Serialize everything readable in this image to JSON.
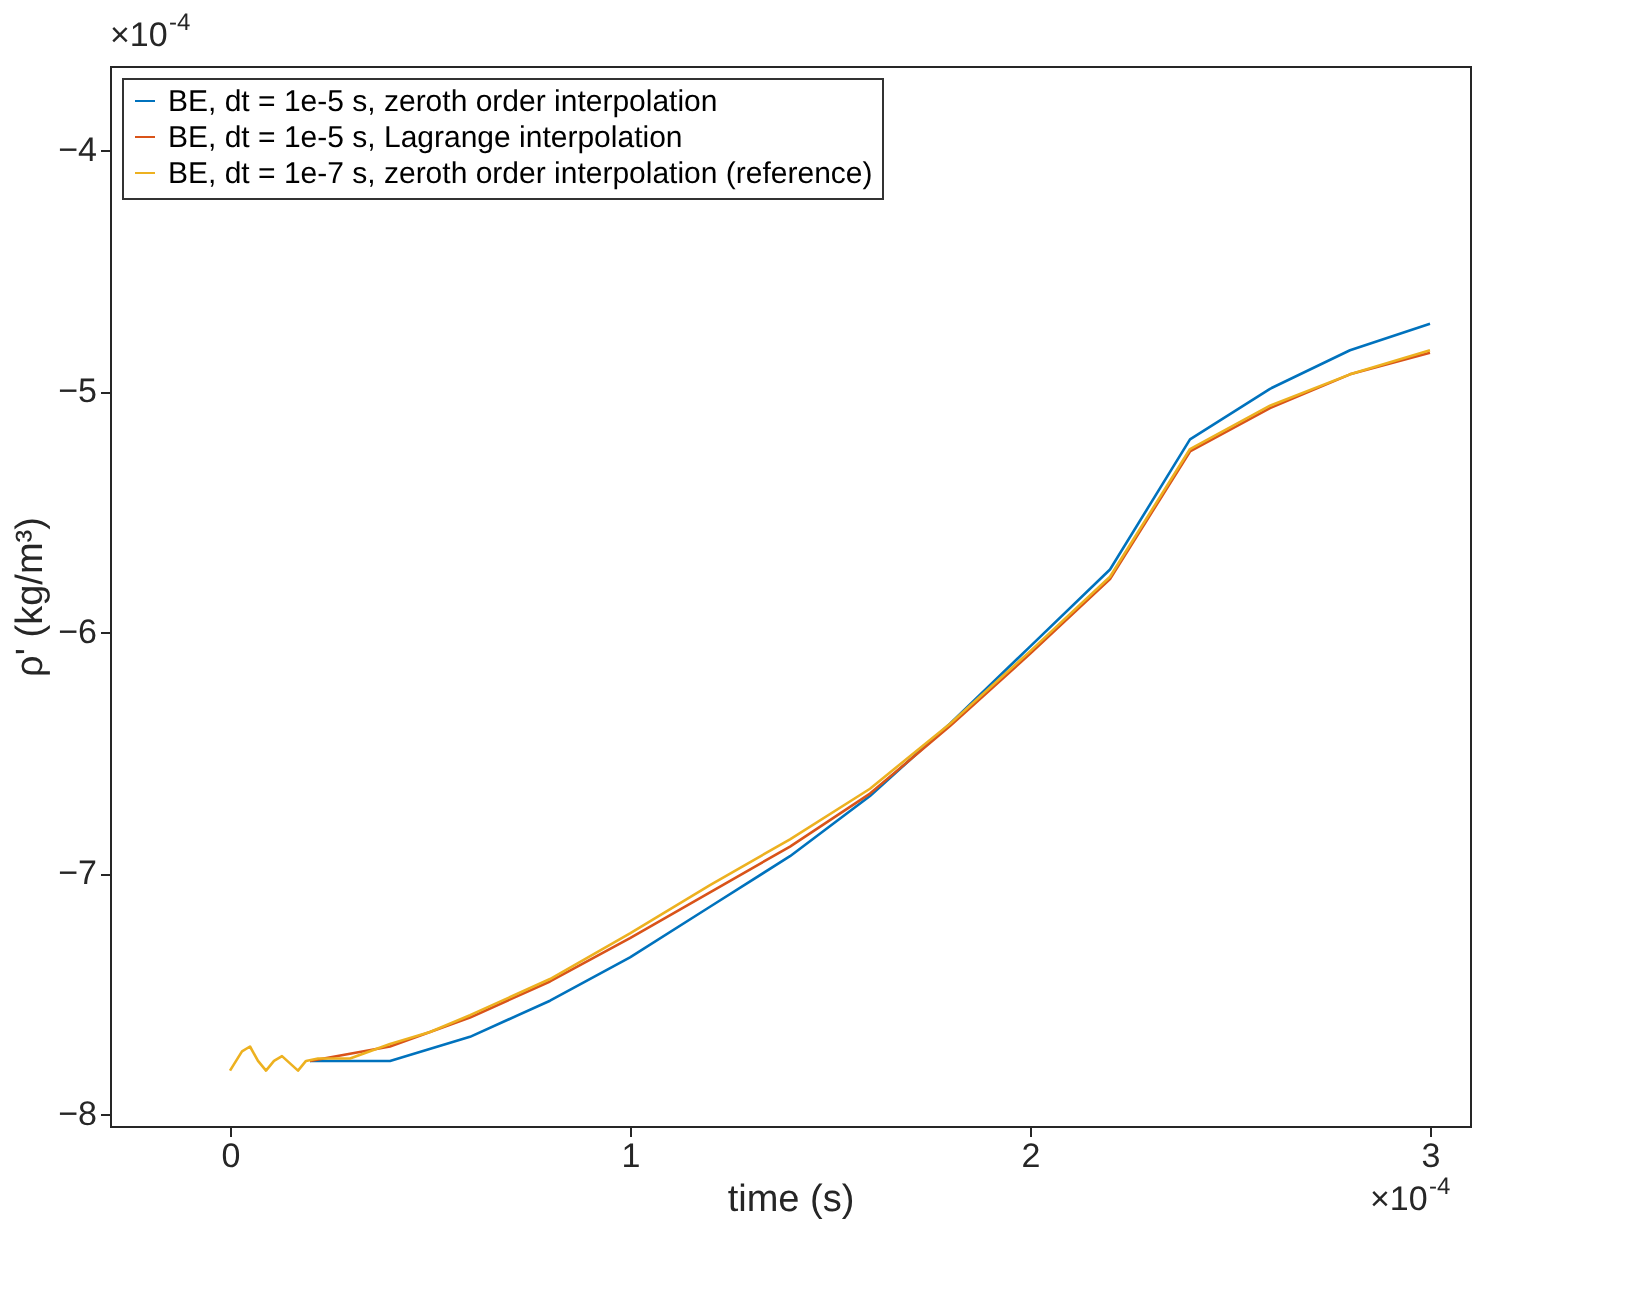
{
  "chart_data": {
    "type": "line",
    "xlabel": "time (s)",
    "ylabel": "ρ' (kg/m³)",
    "xlim": [
      -0.3,
      3.1
    ],
    "xticks": [
      0,
      1,
      2,
      3
    ],
    "ylim": [
      -8.05,
      -3.65
    ],
    "yticks": [
      -8,
      -7,
      -6,
      -5,
      -4
    ],
    "annotations": [
      "×10$^{-4}$",
      "×10$^{-4}$"
    ],
    "legend": "top left",
    "grid": false,
    "line_style": "solid",
    "series": [
      {
        "name": "BE, dt = 1e-5 s, zeroth order interpolation",
        "color": "#0072bd",
        "x": [
          0.2,
          0.4,
          0.6,
          0.8,
          1.0,
          1.2,
          1.4,
          1.6,
          1.8,
          2.0,
          2.2,
          2.4,
          2.6,
          2.8,
          3.0
        ],
        "values": [
          -7.78,
          -7.78,
          -7.68,
          -7.53,
          -7.35,
          -7.14,
          -6.93,
          -6.68,
          -6.38,
          -6.06,
          -5.74,
          -5.2,
          -4.99,
          -4.83,
          -4.72
        ]
      },
      {
        "name": "BE, dt = 1e-5 s, Lagrange interpolation",
        "color": "#d95319",
        "x": [
          0.2,
          0.4,
          0.6,
          0.8,
          1.0,
          1.2,
          1.4,
          1.6,
          1.8,
          2.0,
          2.2,
          2.4,
          2.6,
          2.8,
          3.0
        ],
        "values": [
          -7.78,
          -7.72,
          -7.6,
          -7.45,
          -7.27,
          -7.08,
          -6.89,
          -6.67,
          -6.39,
          -6.09,
          -5.78,
          -5.25,
          -5.07,
          -4.93,
          -4.84
        ]
      },
      {
        "name": "BE, dt = 1e-7 s, zeroth order interpolation (reference)",
        "color": "#edb120",
        "x": [
          0,
          0.03,
          0.05,
          0.07,
          0.09,
          0.11,
          0.13,
          0.15,
          0.17,
          0.19,
          0.22,
          0.3,
          0.35,
          0.4,
          0.5,
          0.6,
          0.8,
          1.0,
          1.2,
          1.4,
          1.6,
          1.8,
          2.0,
          2.2,
          2.4,
          2.6,
          2.8,
          3.0
        ],
        "values": [
          -7.82,
          -7.74,
          -7.72,
          -7.78,
          -7.82,
          -7.78,
          -7.76,
          -7.79,
          -7.82,
          -7.78,
          -7.77,
          -7.77,
          -7.74,
          -7.71,
          -7.66,
          -7.59,
          -7.44,
          -7.25,
          -7.05,
          -6.86,
          -6.65,
          -6.38,
          -6.08,
          -5.77,
          -5.24,
          -5.06,
          -4.93,
          -4.83
        ]
      }
    ]
  }
}
